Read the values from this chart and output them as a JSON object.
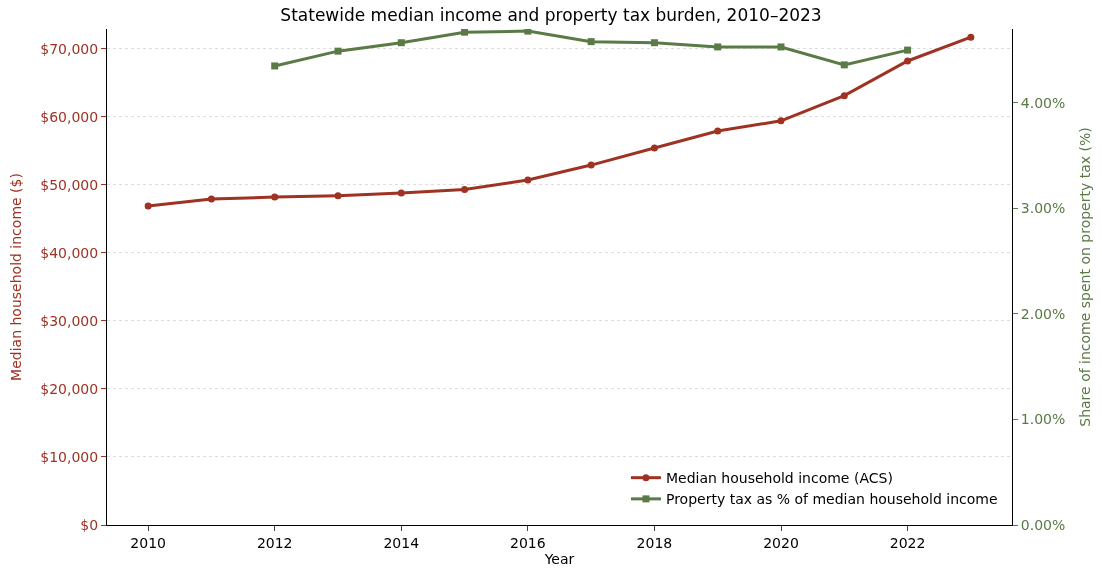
{
  "chart_data": {
    "type": "line",
    "title": "Statewide median income and property tax burden, 2010–2023",
    "xlabel": "Year",
    "ylabel": "Median household income ($)",
    "y2label": "Share of income spent on property tax (%)",
    "x": [
      2010,
      2011,
      2012,
      2013,
      2014,
      2015,
      2016,
      2017,
      2018,
      2019,
      2020,
      2021,
      2022,
      2023
    ],
    "series": [
      {
        "name": "Median household income (ACS)",
        "color": "#9e3223",
        "marker": "circle",
        "values": [
          46900,
          47900,
          48200,
          48400,
          48800,
          49300,
          50700,
          52900,
          55400,
          57900,
          59400,
          63100,
          68200,
          71700
        ]
      },
      {
        "name": "Property tax as % of median household income",
        "color": "#5a7a46",
        "marker": "square",
        "axis": "y2",
        "values": [
          null,
          null,
          4.35,
          4.49,
          4.57,
          4.67,
          4.68,
          4.58,
          4.57,
          4.53,
          4.53,
          4.36,
          4.5,
          null
        ]
      }
    ],
    "xlim": [
      2009.35,
      2023.65
    ],
    "xticks": [
      2010,
      2012,
      2014,
      2016,
      2018,
      2020,
      2022
    ],
    "ylim": [
      0,
      72900
    ],
    "yticks": [
      {
        "value": 0,
        "label": "$0"
      },
      {
        "value": 10000,
        "label": "$10,000"
      },
      {
        "value": 20000,
        "label": "$20,000"
      },
      {
        "value": 30000,
        "label": "$30,000"
      },
      {
        "value": 40000,
        "label": "$40,000"
      },
      {
        "value": 50000,
        "label": "$50,000"
      },
      {
        "value": 60000,
        "label": "$60,000"
      },
      {
        "value": 70000,
        "label": "$70,000"
      }
    ],
    "y2lim": [
      0,
      4.7
    ],
    "y2ticks": [
      {
        "value": 0,
        "label": "0.00%"
      },
      {
        "value": 1,
        "label": "1.00%"
      },
      {
        "value": 2,
        "label": "2.00%"
      },
      {
        "value": 3,
        "label": "3.00%"
      },
      {
        "value": 4,
        "label": "4.00%"
      }
    ],
    "grid": "y",
    "legend": "bottom right",
    "line_style": "solid"
  }
}
